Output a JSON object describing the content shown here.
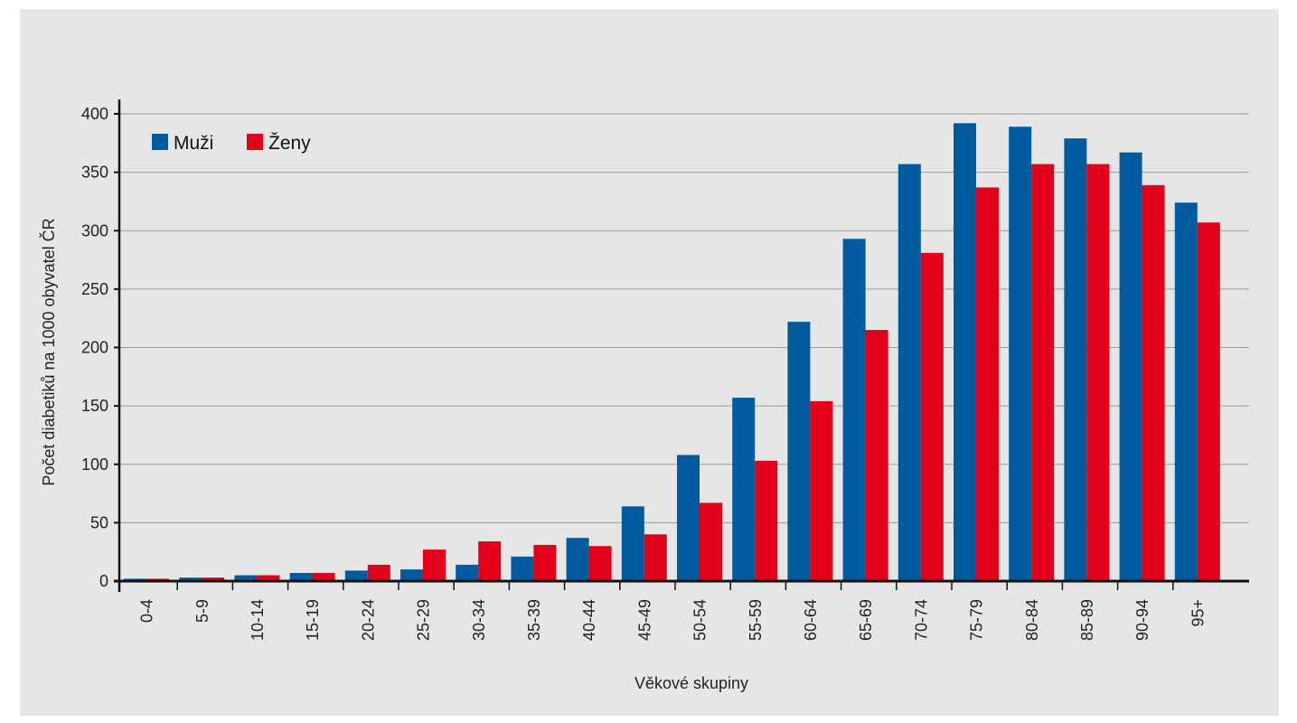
{
  "chart_data": {
    "type": "bar",
    "xlabel": "Věkové skupiny",
    "ylabel": "Počet diabetiků na 1000 obyvatel ČR",
    "ylim": [
      0,
      400
    ],
    "yticks": [
      0,
      50,
      100,
      150,
      200,
      250,
      300,
      350,
      400
    ],
    "grid": true,
    "legend_position": "top-left",
    "categories": [
      "0-4",
      "5-9",
      "10-14",
      "15-19",
      "20-24",
      "25-29",
      "30-34",
      "35-39",
      "40-44",
      "45-49",
      "50-54",
      "55-59",
      "60-64",
      "65-69",
      "70-74",
      "75-79",
      "80-84",
      "85-89",
      "90-94",
      "95+"
    ],
    "series": [
      {
        "name": "Muži",
        "color": "#005b9f",
        "values": [
          2,
          3,
          5,
          7,
          9,
          10,
          14,
          21,
          37,
          64,
          108,
          157,
          222,
          293,
          357,
          392,
          389,
          379,
          367,
          324
        ]
      },
      {
        "name": "Ženy",
        "color": "#e2001a",
        "values": [
          2,
          3,
          5,
          7,
          14,
          27,
          34,
          31,
          30,
          40,
          67,
          103,
          154,
          215,
          281,
          337,
          357,
          357,
          339,
          307
        ]
      }
    ]
  }
}
